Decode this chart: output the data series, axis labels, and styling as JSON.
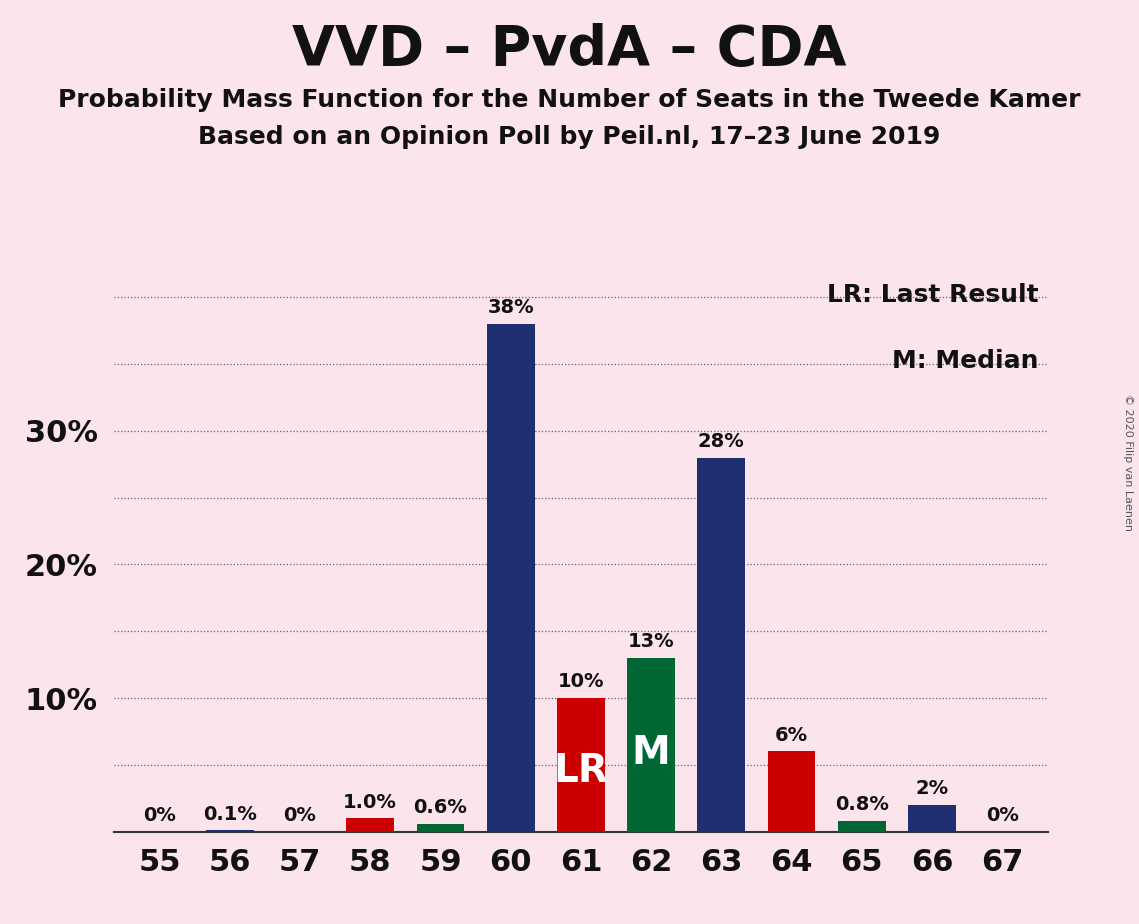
{
  "title": "VVD – PvdA – CDA",
  "subtitle1": "Probability Mass Function for the Number of Seats in the Tweede Kamer",
  "subtitle2": "Based on an Opinion Poll by Peil.nl, 17–23 June 2019",
  "copyright": "© 2020 Filip van Laenen",
  "legend_lr": "LR: Last Result",
  "legend_m": "M: Median",
  "x_seats": [
    55,
    56,
    57,
    58,
    59,
    60,
    61,
    62,
    63,
    64,
    65,
    66,
    67
  ],
  "probabilities": [
    0.0,
    0.001,
    0.0,
    0.01,
    0.006,
    0.38,
    0.1,
    0.13,
    0.28,
    0.06,
    0.008,
    0.02,
    0.0
  ],
  "bar_labels": [
    "0%",
    "0.1%",
    "0%",
    "1.0%",
    "0.6%",
    "38%",
    "10%",
    "13%",
    "28%",
    "6%",
    "0.8%",
    "2%",
    "0%"
  ],
  "bar_colors_map": {
    "55": "#1e3070",
    "56": "#1e3070",
    "57": "#1e3070",
    "58": "#cc0000",
    "59": "#006633",
    "60": "#1e3070",
    "61": "#cc0000",
    "62": "#006633",
    "63": "#1e3070",
    "64": "#cc0000",
    "65": "#006633",
    "66": "#1e3070",
    "67": "#1e3070"
  },
  "lr_seat": 61,
  "median_seat": 62,
  "lr_label": "LR",
  "median_label": "M",
  "background_color": "#fce4ec",
  "ylim_max": 0.415,
  "ytick_positions": [
    0.1,
    0.2,
    0.3
  ],
  "ytick_labels": [
    "10%",
    "20%",
    "30%"
  ],
  "grid_positions": [
    0.05,
    0.1,
    0.15,
    0.2,
    0.25,
    0.3,
    0.35,
    0.4
  ],
  "bar_width": 0.68,
  "label_fontsize": 14,
  "tick_fontsize": 22,
  "legend_fontsize": 18,
  "lr_m_fontsize": 28,
  "title_fontsize": 40,
  "subtitle_fontsize": 18
}
